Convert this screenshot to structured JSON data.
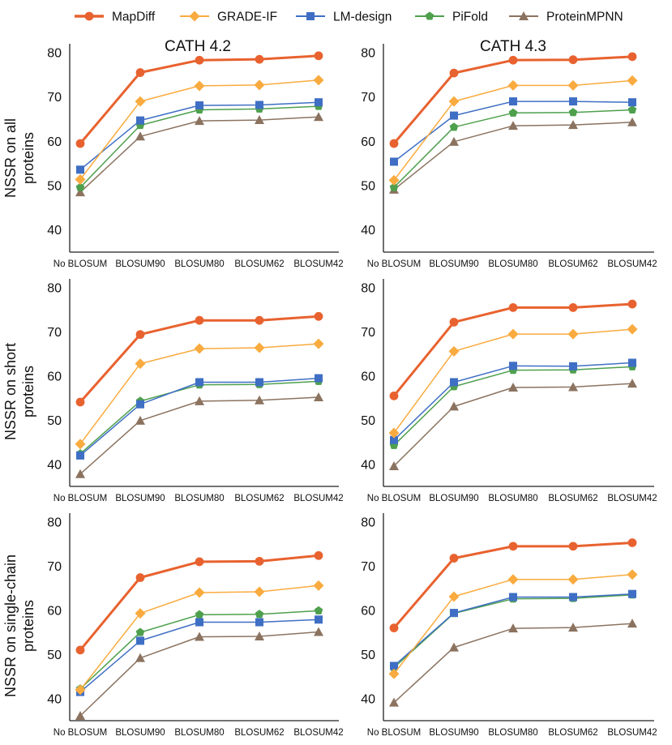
{
  "legend": [
    {
      "name": "MapDiff",
      "color": "#e8622f",
      "marker": "circle",
      "width": 3.0
    },
    {
      "name": "GRADE-IF",
      "color": "#f9ab3f",
      "marker": "diamond",
      "width": 1.5
    },
    {
      "name": "LM-design",
      "color": "#3f6fc4",
      "marker": "square",
      "width": 1.5
    },
    {
      "name": "PiFold",
      "color": "#4ea04d",
      "marker": "pentagon",
      "width": 1.5
    },
    {
      "name": "ProteinMPNN",
      "color": "#8b7360",
      "marker": "triangle",
      "width": 1.5
    }
  ],
  "column_titles": [
    "CATH 4.2",
    "CATH 4.3"
  ],
  "row_labels": [
    [
      "NSSR on all",
      "proteins"
    ],
    [
      "NSSR on short",
      "proteins"
    ],
    [
      "NSSR on single-chain",
      "proteins"
    ]
  ],
  "chart_data": [
    {
      "type": "line",
      "column": "CATH 4.2",
      "ylabel": "NSSR on all proteins",
      "categories": [
        "No BLOSUM",
        "BLOSUM90",
        "BLOSUM80",
        "BLOSUM62",
        "BLOSUM42"
      ],
      "ylim": [
        35,
        82
      ],
      "yticks": [
        40,
        50,
        60,
        70,
        80
      ],
      "series": [
        {
          "name": "MapDiff",
          "values": [
            59.5,
            75.5,
            78.3,
            78.5,
            79.3
          ]
        },
        {
          "name": "GRADE-IF",
          "values": [
            51.4,
            69.0,
            72.5,
            72.7,
            73.8
          ]
        },
        {
          "name": "LM-design",
          "values": [
            53.6,
            64.7,
            68.1,
            68.2,
            68.8
          ]
        },
        {
          "name": "PiFold",
          "values": [
            49.6,
            63.6,
            67.1,
            67.3,
            67.9
          ]
        },
        {
          "name": "ProteinMPNN",
          "values": [
            48.5,
            61.1,
            64.6,
            64.8,
            65.5
          ]
        }
      ]
    },
    {
      "type": "line",
      "column": "CATH 4.3",
      "ylabel": "NSSR on all proteins",
      "categories": [
        "No BLOSUM",
        "BLOSUM90",
        "BLOSUM80",
        "BLOSUM62",
        "BLOSUM42"
      ],
      "ylim": [
        35,
        82
      ],
      "yticks": [
        40,
        50,
        60,
        70,
        80
      ],
      "series": [
        {
          "name": "MapDiff",
          "values": [
            59.5,
            75.4,
            78.3,
            78.4,
            79.1
          ]
        },
        {
          "name": "GRADE-IF",
          "values": [
            51.2,
            69.0,
            72.6,
            72.6,
            73.7
          ]
        },
        {
          "name": "LM-design",
          "values": [
            55.4,
            65.8,
            69.0,
            69.0,
            68.8
          ]
        },
        {
          "name": "PiFold",
          "values": [
            49.6,
            63.2,
            66.4,
            66.5,
            67.1
          ]
        },
        {
          "name": "ProteinMPNN",
          "values": [
            49.1,
            59.9,
            63.5,
            63.7,
            64.3
          ]
        }
      ]
    },
    {
      "type": "line",
      "column": "CATH 4.2",
      "ylabel": "NSSR on short proteins",
      "categories": [
        "No BLOSUM",
        "BLOSUM90",
        "BLOSUM80",
        "BLOSUM62",
        "BLOSUM42"
      ],
      "ylim": [
        35,
        82
      ],
      "yticks": [
        40,
        50,
        60,
        70,
        80
      ],
      "series": [
        {
          "name": "MapDiff",
          "values": [
            54.1,
            69.4,
            72.6,
            72.6,
            73.5
          ]
        },
        {
          "name": "GRADE-IF",
          "values": [
            44.6,
            62.8,
            66.2,
            66.4,
            67.3
          ]
        },
        {
          "name": "LM-design",
          "values": [
            42.0,
            53.6,
            58.6,
            58.6,
            59.5
          ]
        },
        {
          "name": "PiFold",
          "values": [
            42.4,
            54.3,
            58.0,
            58.1,
            58.8
          ]
        },
        {
          "name": "ProteinMPNN",
          "values": [
            37.8,
            49.9,
            54.3,
            54.5,
            55.2
          ]
        }
      ]
    },
    {
      "type": "line",
      "column": "CATH 4.3",
      "ylabel": "NSSR on short proteins",
      "categories": [
        "No BLOSUM",
        "BLOSUM90",
        "BLOSUM80",
        "BLOSUM62",
        "BLOSUM42"
      ],
      "ylim": [
        35,
        82
      ],
      "yticks": [
        40,
        50,
        60,
        70,
        80
      ],
      "series": [
        {
          "name": "MapDiff",
          "values": [
            55.5,
            72.2,
            75.5,
            75.5,
            76.3
          ]
        },
        {
          "name": "GRADE-IF",
          "values": [
            47.1,
            65.6,
            69.5,
            69.5,
            70.6
          ]
        },
        {
          "name": "LM-design",
          "values": [
            45.5,
            58.6,
            62.3,
            62.2,
            63.0
          ]
        },
        {
          "name": "PiFold",
          "values": [
            44.3,
            57.6,
            61.3,
            61.4,
            62.1
          ]
        },
        {
          "name": "ProteinMPNN",
          "values": [
            39.6,
            53.1,
            57.4,
            57.5,
            58.3
          ]
        }
      ]
    },
    {
      "type": "line",
      "column": "CATH 4.2",
      "ylabel": "NSSR on single-chain proteins",
      "categories": [
        "No BLOSUM",
        "BLOSUM90",
        "BLOSUM80",
        "BLOSUM62",
        "BLOSUM42"
      ],
      "ylim": [
        35,
        82
      ],
      "yticks": [
        40,
        50,
        60,
        70,
        80
      ],
      "series": [
        {
          "name": "MapDiff",
          "values": [
            51.0,
            67.4,
            71.0,
            71.1,
            72.4
          ]
        },
        {
          "name": "GRADE-IF",
          "values": [
            42.0,
            59.3,
            64.0,
            64.2,
            65.6
          ]
        },
        {
          "name": "LM-design",
          "values": [
            41.5,
            53.1,
            57.3,
            57.3,
            57.9
          ]
        },
        {
          "name": "PiFold",
          "values": [
            42.2,
            55.0,
            59.0,
            59.1,
            59.9
          ]
        },
        {
          "name": "ProteinMPNN",
          "values": [
            36.1,
            49.2,
            54.0,
            54.1,
            55.1
          ]
        }
      ]
    },
    {
      "type": "line",
      "column": "CATH 4.3",
      "ylabel": "NSSR on single-chain proteins",
      "categories": [
        "No BLOSUM",
        "BLOSUM90",
        "BLOSUM80",
        "BLOSUM62",
        "BLOSUM42"
      ],
      "ylim": [
        35,
        82
      ],
      "yticks": [
        40,
        50,
        60,
        70,
        80
      ],
      "series": [
        {
          "name": "MapDiff",
          "values": [
            56.0,
            71.8,
            74.5,
            74.5,
            75.3
          ]
        },
        {
          "name": "GRADE-IF",
          "values": [
            45.6,
            63.1,
            67.0,
            67.0,
            68.1
          ]
        },
        {
          "name": "LM-design",
          "values": [
            47.4,
            59.4,
            63.0,
            63.0,
            63.7
          ]
        },
        {
          "name": "PiFold",
          "values": [
            47.0,
            59.3,
            62.6,
            62.7,
            63.5
          ]
        },
        {
          "name": "ProteinMPNN",
          "values": [
            39.1,
            51.6,
            55.9,
            56.1,
            57.0
          ]
        }
      ]
    }
  ]
}
